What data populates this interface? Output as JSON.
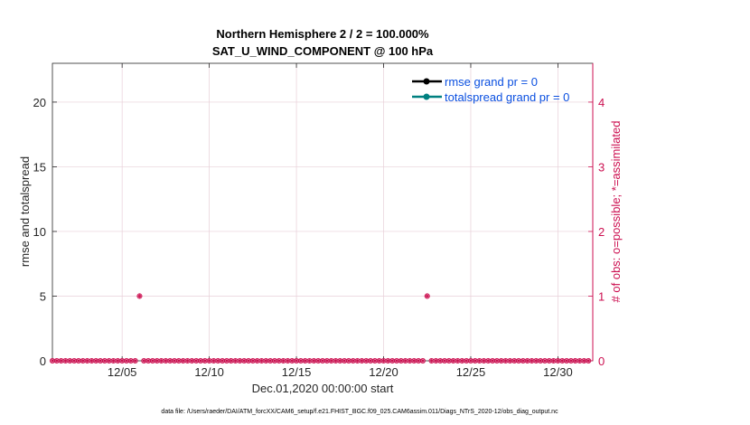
{
  "chart_data": {
    "type": "line",
    "title": "Northern Hemisphere 2 / 2 = 100.000%",
    "subtitle": "SAT_U_WIND_COMPONENT @ 100 hPa",
    "xlabel": "Dec.01,2020 00:00:00 start",
    "ylabel": "rmse and totalspread",
    "ylabel_right": "# of obs: o=possible; *=assimilated",
    "footnote": "data file: /Users/raeder/DAI/ATM_forcXX/CAM6_setup/f.e21.FHIST_BGC.f09_025.CAM6assim.011/Diags_NTrS_2020-12/obs_diag_output.nc",
    "x_tick_labels": [
      "12/05",
      "12/10",
      "12/15",
      "12/20",
      "12/25",
      "12/30"
    ],
    "x_tick_values": [
      5,
      10,
      15,
      20,
      25,
      30
    ],
    "xlim": [
      1,
      32
    ],
    "ylim": [
      0,
      23
    ],
    "y_ticks": [
      0,
      5,
      10,
      15,
      20
    ],
    "ylim_right": [
      0,
      4.6
    ],
    "y_ticks_right": [
      0,
      1,
      2,
      3,
      4
    ],
    "grid": true,
    "legend_position": "top-right",
    "series": [
      {
        "name": "rmse grand pr = 0",
        "color": "#000000",
        "marker": "circle",
        "x": [],
        "y": []
      },
      {
        "name": "totalspread grand pr = 0",
        "color": "#008080",
        "marker": "circle",
        "x": [],
        "y": []
      }
    ],
    "obs_count": {
      "color": "#cc0f50",
      "step_days": 0.25,
      "x_start": 1.0,
      "x_end": 31.75,
      "nonzero": [
        {
          "x": 6.0,
          "possible": 1,
          "assimilated": 1
        },
        {
          "x": 22.5,
          "possible": 1,
          "assimilated": 1
        }
      ]
    },
    "colors": {
      "right_axis": "#cc0f50",
      "legend_text": "#0a4fe0",
      "grid": "#e8cfd8"
    }
  }
}
